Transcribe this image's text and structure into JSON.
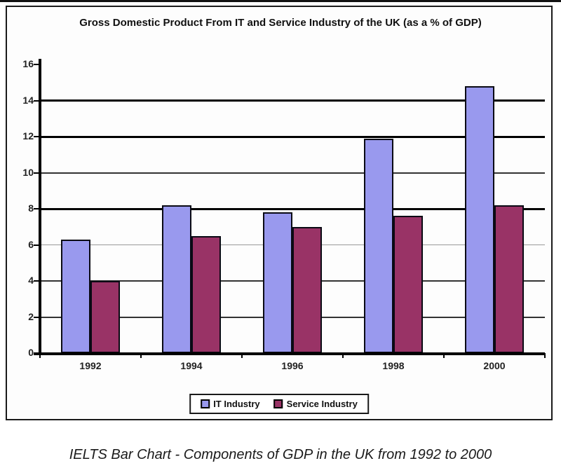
{
  "chart_data": {
    "type": "bar",
    "title": "Gross Domestic Product From IT and Service Industry of the UK (as a % of GDP)",
    "categories": [
      "1992",
      "1994",
      "1996",
      "1998",
      "2000"
    ],
    "series": [
      {
        "name": "IT Industry",
        "color": "#9999EE",
        "values": [
          6.3,
          8.2,
          7.8,
          11.9,
          14.8
        ]
      },
      {
        "name": "Service Industry",
        "color": "#993366",
        "values": [
          4.0,
          6.5,
          7.0,
          7.6,
          8.2
        ]
      }
    ],
    "ylim": [
      0,
      16
    ],
    "yticks": [
      0,
      2,
      4,
      6,
      8,
      10,
      12,
      14,
      16
    ],
    "grid": true,
    "legend_position": "bottom",
    "xlabel": "",
    "ylabel": ""
  },
  "caption": "IELTS Bar Chart - Components of GDP in the UK from 1992 to 2000"
}
